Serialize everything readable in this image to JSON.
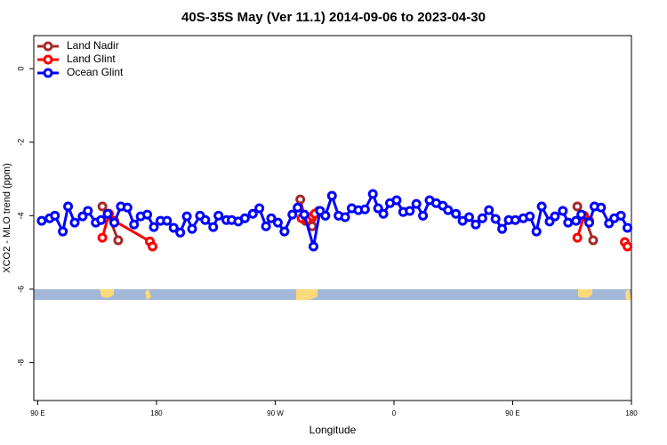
{
  "chart_data": {
    "type": "line",
    "title": "40S-35S May (Ver 11.1)   2014-09-06 to 2023-04-30",
    "x_label": "Longitude",
    "y_label": "XCO2 - MLO trend (ppm)",
    "xlim": [
      87,
      540
    ],
    "xticks": [
      {
        "value": 90,
        "label": "90 E"
      },
      {
        "value": 180,
        "label": "180"
      },
      {
        "value": 270,
        "label": "90 W"
      },
      {
        "value": 360,
        "label": "0"
      },
      {
        "value": 450,
        "label": "90 E"
      },
      {
        "value": 540,
        "label": "180"
      }
    ],
    "ylim": [
      -9.03,
      0.9
    ],
    "yticks": [
      0,
      -2,
      -4,
      -6,
      -8
    ],
    "legend": "top-left",
    "series": [
      {
        "name": "Land Nadir",
        "color": "#a52a2a",
        "x": [
          139,
          143,
          151,
          null,
          289,
          293,
          298,
          303,
          null,
          499,
          504,
          511
        ],
        "values": [
          -3.75,
          -3.95,
          -4.67,
          null,
          -3.56,
          -4.14,
          -4.29,
          -3.87,
          null,
          -3.75,
          -4.0,
          -4.67
        ]
      },
      {
        "name": "Land Glint",
        "color": "#ff0000",
        "x": [
          139,
          144,
          148,
          175,
          177,
          null,
          290,
          294,
          298,
          300,
          null,
          499,
          504,
          508,
          null,
          535,
          537
        ],
        "values": [
          -4.6,
          -3.95,
          -4.14,
          -4.7,
          -4.84,
          null,
          -4.07,
          -4.12,
          -4.02,
          -3.95,
          null,
          -4.6,
          -4.02,
          -4.14,
          null,
          -4.72,
          -4.84
        ]
      },
      {
        "name": "Ocean Glint",
        "color": "#0000ff",
        "x": [
          93,
          99,
          103,
          109,
          113,
          118,
          124,
          128,
          134,
          138,
          143,
          148,
          153,
          158,
          163,
          168,
          173,
          178,
          183,
          188,
          193,
          198,
          203,
          207,
          213,
          217,
          223,
          227,
          233,
          237,
          242,
          247,
          253,
          258,
          263,
          267,
          272,
          277,
          283,
          287,
          292,
          299,
          304,
          308,
          313,
          318,
          323,
          328,
          333,
          338,
          344,
          348,
          352,
          357,
          362,
          367,
          372,
          377,
          382,
          387,
          392,
          397,
          401,
          407,
          412,
          417,
          422,
          427,
          432,
          437,
          442,
          447,
          452,
          458,
          463,
          468,
          472,
          478,
          482,
          488,
          492,
          498,
          502,
          508,
          512,
          517,
          523,
          527,
          532,
          537
        ],
        "values": [
          -4.14,
          -4.07,
          -4.0,
          -4.43,
          -3.75,
          -4.19,
          -4.02,
          -3.87,
          -4.19,
          -4.12,
          -3.95,
          -4.19,
          -3.75,
          -3.78,
          -4.24,
          -4.02,
          -3.97,
          -4.31,
          -4.14,
          -4.14,
          -4.33,
          -4.46,
          -4.02,
          -4.36,
          -4.0,
          -4.12,
          -4.31,
          -4.0,
          -4.12,
          -4.12,
          -4.16,
          -4.07,
          -3.95,
          -3.8,
          -4.29,
          -4.07,
          -4.19,
          -4.43,
          -3.97,
          -3.78,
          -3.97,
          -4.84,
          -3.87,
          -4.0,
          -3.46,
          -4.0,
          -4.04,
          -3.8,
          -3.85,
          -3.83,
          -3.41,
          -3.8,
          -3.95,
          -3.66,
          -3.58,
          -3.9,
          -3.87,
          -3.68,
          -4.0,
          -3.58,
          -3.66,
          -3.73,
          -3.85,
          -3.95,
          -4.14,
          -4.04,
          -4.24,
          -4.07,
          -3.85,
          -4.09,
          -4.36,
          -4.12,
          -4.12,
          -4.07,
          -4.02,
          -4.43,
          -3.75,
          -4.16,
          -4.02,
          -3.87,
          -4.19,
          -4.14,
          -3.97,
          -4.19,
          -3.75,
          -3.78,
          -4.21,
          -4.07,
          -4.0,
          -4.33
        ]
      }
    ]
  }
}
